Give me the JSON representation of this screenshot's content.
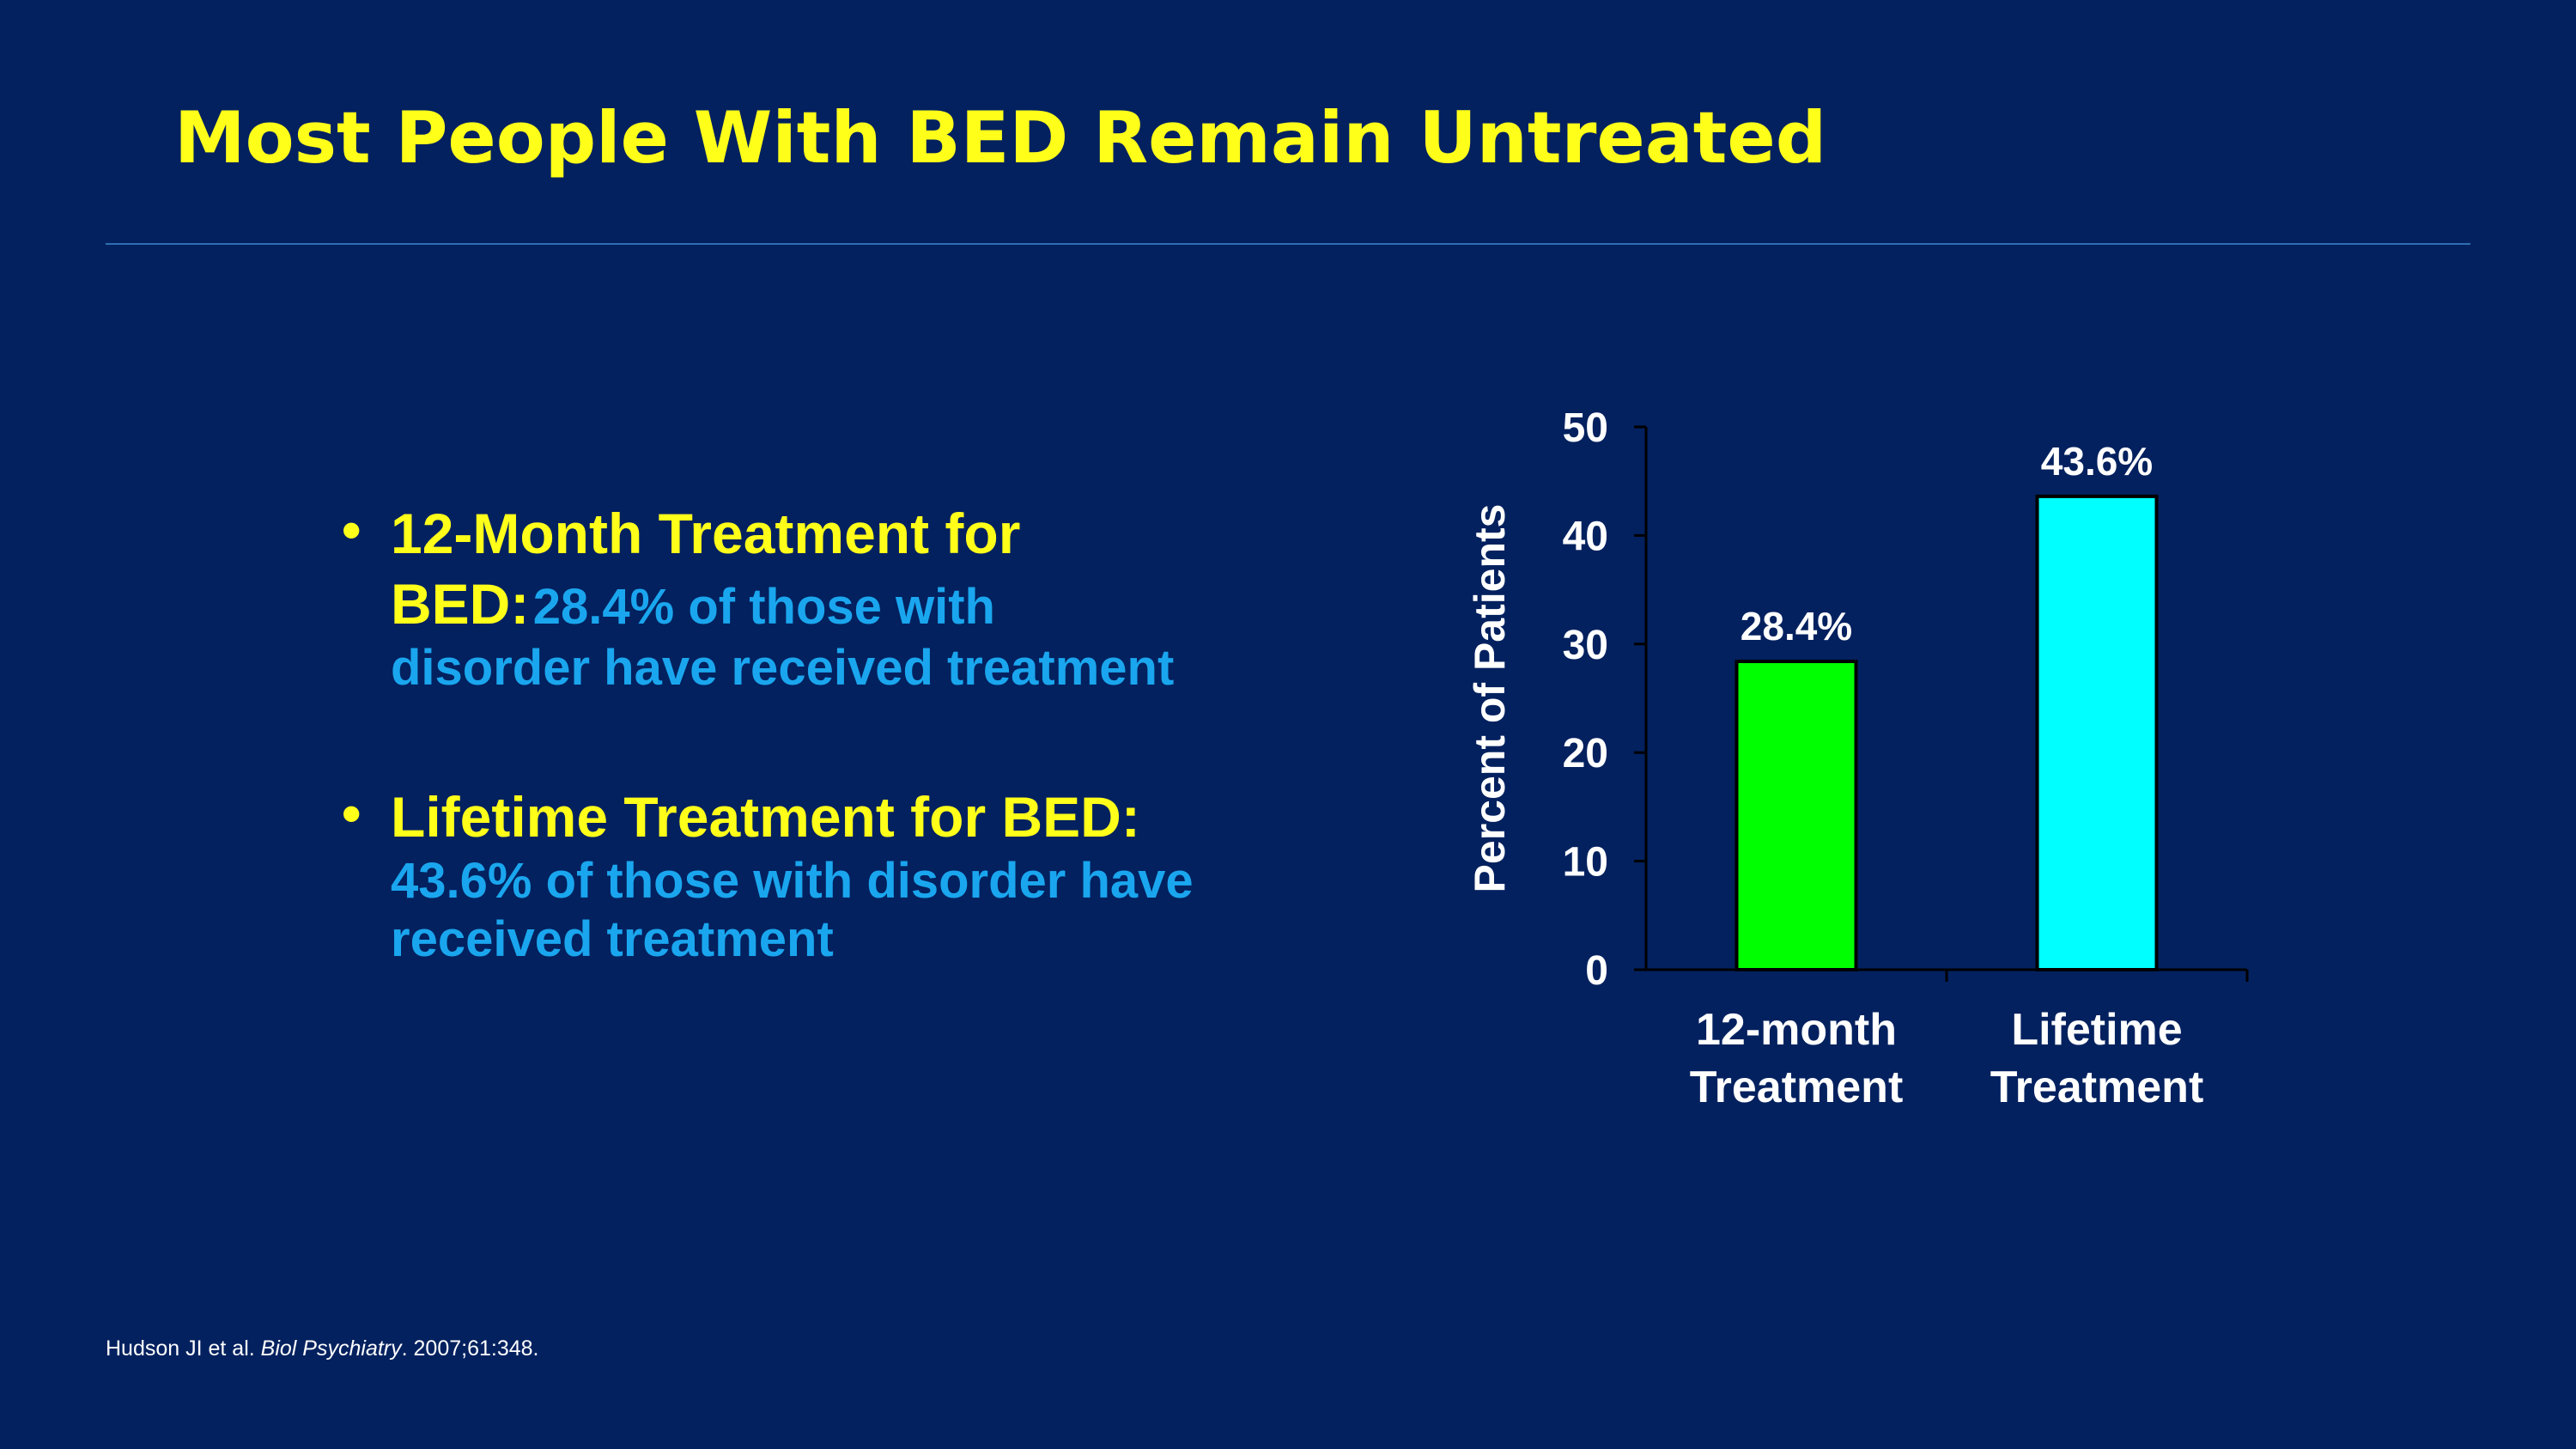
{
  "slide": {
    "title": "Most People With BED Remain Untreated",
    "bullets": [
      {
        "marker": "•",
        "lead_line1": "12-Month Treatment for",
        "lead_line2": "BED:",
        "detail_inline": "28.4% of those with",
        "detail_rest": "disorder have received treatment"
      },
      {
        "marker": "•",
        "lead": "Lifetime Treatment for BED:",
        "detail_line1": "43.6% of those with disorder have",
        "detail_line2": "received treatment"
      }
    ],
    "citation": {
      "authors": "Hudson JI et al.",
      "journal": "Biol Psychiatry",
      "ref": ". 2007;61:348."
    }
  },
  "colors": {
    "background": "#03215f",
    "title": "#ffff1a",
    "detail_text": "#1aa6ee",
    "bar_12_month": "#00ff00",
    "bar_lifetime": "#00ffff",
    "axis": "#000000",
    "chart_text": "#ffffff"
  },
  "chart_data": {
    "type": "bar",
    "categories": [
      [
        "12-month",
        "Treatment"
      ],
      [
        "Lifetime",
        "Treatment"
      ]
    ],
    "values": [
      28.4,
      43.6
    ],
    "data_labels": [
      "28.4%",
      "43.6%"
    ],
    "ylabel": "Percent of Patients",
    "xlabel": "",
    "ylim": [
      0,
      50
    ],
    "yticks": [
      0,
      10,
      20,
      30,
      40,
      50
    ],
    "grid": false,
    "legend": "none"
  }
}
